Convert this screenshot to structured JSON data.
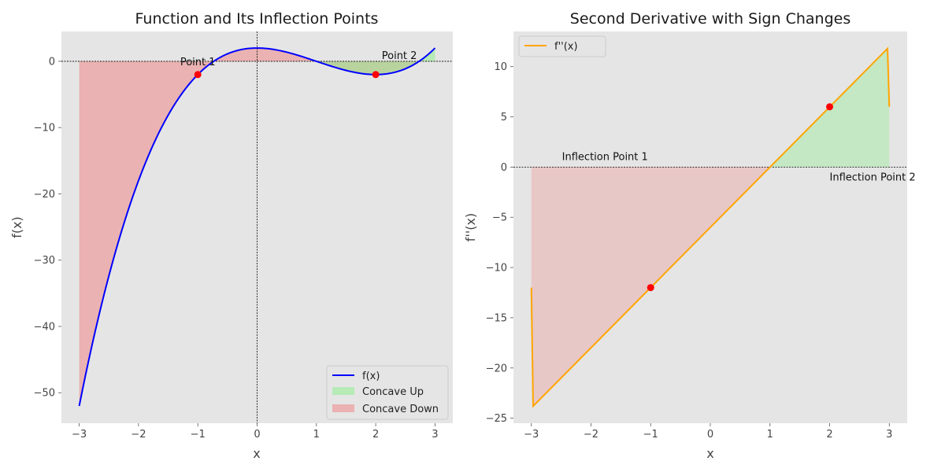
{
  "chart_data": [
    {
      "type": "line",
      "title": "Function and Its Inflection Points",
      "xlabel": "x",
      "ylabel": "f(x)",
      "xlim": [
        -3.3,
        3.3
      ],
      "ylim": [
        -54.6,
        4.5
      ],
      "grid": false,
      "legend_position": "lower-right",
      "xticks": [
        -3,
        -2,
        -1,
        0,
        1,
        2,
        3
      ],
      "xtick_labels": [
        "−3",
        "−2",
        "−1",
        "0",
        "1",
        "2",
        "3"
      ],
      "yticks": [
        0,
        -10,
        -20,
        -30,
        -40,
        -50
      ],
      "ytick_labels": [
        "0",
        "−10",
        "−20",
        "−30",
        "−40",
        "−50"
      ],
      "series": [
        {
          "name": "f(x)",
          "color": "#0000ff",
          "x": [
            -3.0,
            -2.75,
            -2.5,
            -2.25,
            -2.0,
            -1.75,
            -1.5,
            -1.25,
            -1.0,
            -0.75,
            -0.5,
            -0.25,
            0.0,
            0.25,
            0.5,
            0.75,
            1.0,
            1.25,
            1.5,
            1.75,
            2.0,
            2.25,
            2.5,
            2.75,
            3.0
          ],
          "y": [
            -52.0,
            -41.89,
            -33.13,
            -25.63,
            -19.33,
            -14.14,
            -9.94,
            -6.65,
            -4.17,
            -2.38,
            -1.19,
            -0.48,
            0.0,
            0.27,
            0.44,
            0.55,
            0.65,
            0.77,
            0.94,
            1.22,
            1.65,
            2.26,
            3.09,
            4.18,
            5.55
          ]
        },
        {
          "name": "Concave Up",
          "color": "#90ee90"
        },
        {
          "name": "Concave Down",
          "color": "#f08080"
        }
      ],
      "points": [
        {
          "x": -1,
          "y": -2,
          "color": "#ff0000"
        },
        {
          "x": 2,
          "y": -2,
          "color": "#ff0000"
        }
      ],
      "annotations": [
        {
          "text": "Point 1",
          "x": -1,
          "y": -2
        },
        {
          "text": "Point 2",
          "x": 2,
          "y": -2
        }
      ]
    },
    {
      "type": "line",
      "title": "Second Derivative with Sign Changes",
      "xlabel": "x",
      "ylabel": "f''(x)",
      "xlim": [
        -3.3,
        3.3
      ],
      "ylim": [
        -25.5,
        13.5
      ],
      "grid": false,
      "legend_position": "upper-left",
      "xticks": [
        -3,
        -2,
        -1,
        0,
        1,
        2,
        3
      ],
      "xtick_labels": [
        "−3",
        "−2",
        "−1",
        "0",
        "1",
        "2",
        "3"
      ],
      "yticks": [
        10,
        5,
        0,
        -5,
        -10,
        -15,
        -20,
        -25
      ],
      "ytick_labels": [
        "10",
        "5",
        "0",
        "−5",
        "−10",
        "−15",
        "−20",
        "−25"
      ],
      "series": [
        {
          "name": "f''(x)",
          "color": "#ffa500",
          "x": [
            -3.0,
            -2.97,
            2.97,
            3.0
          ],
          "y": [
            -12.0,
            -23.8,
            11.8,
            6.0
          ]
        }
      ],
      "points": [
        {
          "x": -1,
          "y": -12,
          "color": "#ff0000"
        },
        {
          "x": 2,
          "y": 6,
          "color": "#ff0000"
        }
      ],
      "annotations": [
        {
          "text": "Inflection Point 1",
          "x": -1,
          "y": 0
        },
        {
          "text": "Inflection Point 2",
          "x": 2,
          "y": 0
        }
      ]
    }
  ]
}
